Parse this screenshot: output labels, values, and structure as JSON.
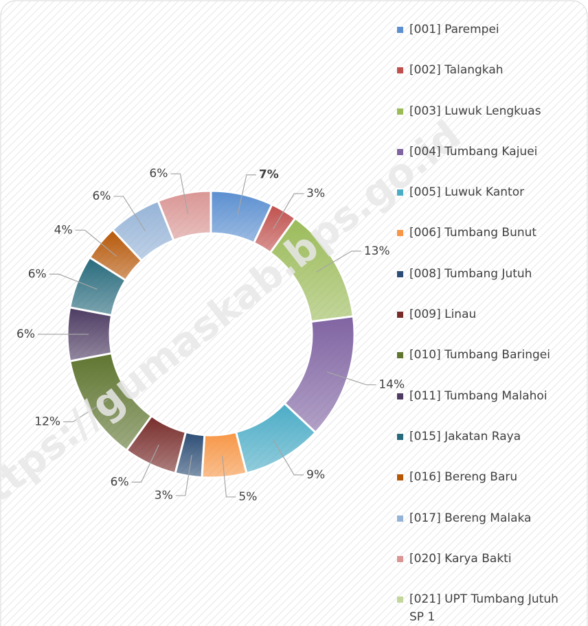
{
  "chart_data": {
    "type": "donut",
    "watermark": "https://gumaskab.bps.go.id",
    "categories": [
      "[001] Parempei",
      "[002] Talangkah",
      "[003] Luwuk Lengkuas",
      "[004] Tumbang Kajuei",
      "[005] Luwuk Kantor",
      "[006] Tumbang Bunut",
      "[008] Tumbang Jutuh",
      "[009] Linau",
      "[010] Tumbang Baringei",
      "[011] Tumbang Malahoi",
      "[015] Jakatan Raya",
      "[016] Bereng Baru",
      "[017] Bereng Malaka",
      "[020] Karya Bakti",
      "[021] UPT Tumbang Jutuh SP 1"
    ],
    "values": [
      7,
      3,
      13,
      14,
      9,
      5,
      3,
      6,
      12,
      6,
      6,
      4,
      6,
      6,
      0
    ],
    "value_labels": [
      "7%",
      "3%",
      "13%",
      "14%",
      "9%",
      "5%",
      "3%",
      "6%",
      "12%",
      "6%",
      "6%",
      "4%",
      "6%",
      "6%",
      null
    ],
    "colors": [
      "#5b8fd0",
      "#c0504d",
      "#9bbb59",
      "#8064a2",
      "#4bacc6",
      "#f79646",
      "#2c4d75",
      "#772c2a",
      "#5f7530",
      "#4d3b62",
      "#276a7c",
      "#b65708",
      "#95b3d7",
      "#d99694",
      "#c3d69b"
    ],
    "legend": "right"
  }
}
